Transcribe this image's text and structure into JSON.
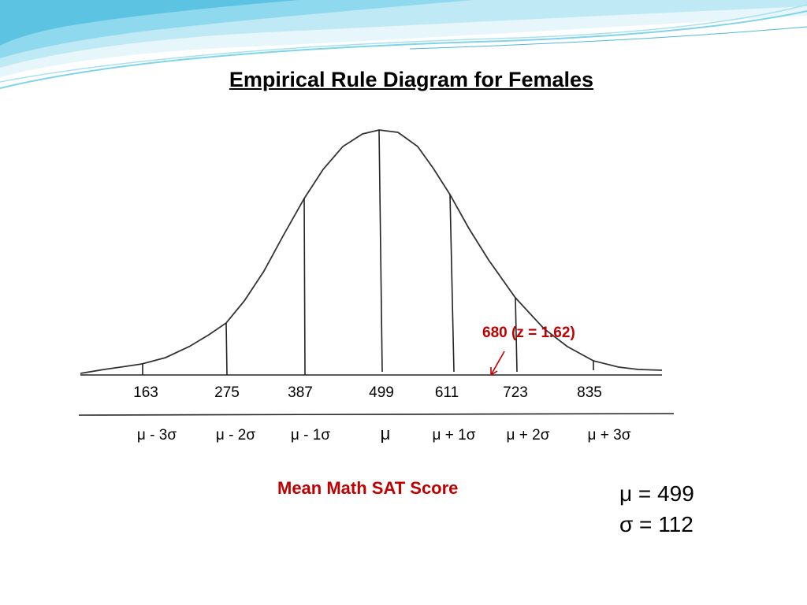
{
  "slide": {
    "title": "Empirical Rule Diagram for Females"
  },
  "colors": {
    "accent": "#c00000",
    "wave_light": "#bfe9f5",
    "wave_mid": "#7fd3ea",
    "wave_dark": "#4fb8d8"
  },
  "diagram": {
    "type": "normal-curve",
    "xlabel": "Mean Math SAT Score",
    "annotation": "680 (z = 1.62)",
    "annotation_value": 680,
    "tick_values": [
      "163",
      "275",
      "387",
      "499",
      "611",
      "723",
      "835"
    ],
    "sigma_labels": [
      "μ - 3σ",
      "μ - 2σ",
      "μ - 1σ",
      "μ",
      "μ + 1σ",
      "μ + 2σ",
      "μ + 3σ"
    ]
  },
  "stats": {
    "mean_text": "μ = 499",
    "sd_text": "σ = 112",
    "mean": 499,
    "sd": 112
  }
}
